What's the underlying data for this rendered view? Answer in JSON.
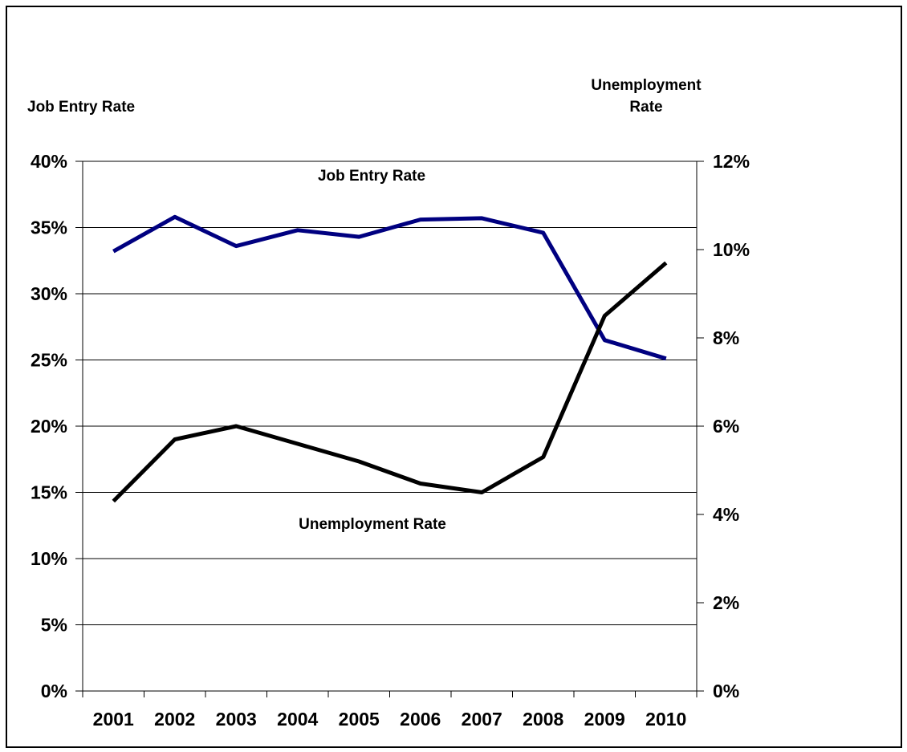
{
  "chart_data": {
    "type": "line",
    "categories": [
      "2001",
      "2002",
      "2003",
      "2004",
      "2005",
      "2006",
      "2007",
      "2008",
      "2009",
      "2010"
    ],
    "left_axis": {
      "title": "Job Entry Rate",
      "ylim": [
        0,
        40
      ],
      "ticks": [
        0,
        5,
        10,
        15,
        20,
        25,
        30,
        35,
        40
      ],
      "tick_labels": [
        "0%",
        "5%",
        "10%",
        "15%",
        "20%",
        "25%",
        "30%",
        "35%",
        "40%"
      ]
    },
    "right_axis": {
      "title_line1": "Unemployment",
      "title_line2": "Rate",
      "ylim": [
        0,
        12
      ],
      "ticks": [
        0,
        2,
        4,
        6,
        8,
        10,
        12
      ],
      "tick_labels": [
        "0%",
        "2%",
        "4%",
        "6%",
        "8%",
        "10%",
        "12%"
      ]
    },
    "series": [
      {
        "name": "Job Entry Rate",
        "axis": "left",
        "color": "#000080",
        "values": [
          33.2,
          35.8,
          33.6,
          34.8,
          34.3,
          35.6,
          35.7,
          34.6,
          26.5,
          25.1
        ]
      },
      {
        "name": "Unemployment Rate",
        "axis": "right",
        "color": "#000000",
        "values": [
          4.3,
          5.7,
          6.0,
          5.6,
          5.2,
          4.7,
          4.5,
          5.3,
          8.5,
          9.7
        ]
      }
    ],
    "annotations": [
      "Job Entry Rate",
      "Unemployment Rate"
    ],
    "grid": true,
    "legend": "none"
  }
}
